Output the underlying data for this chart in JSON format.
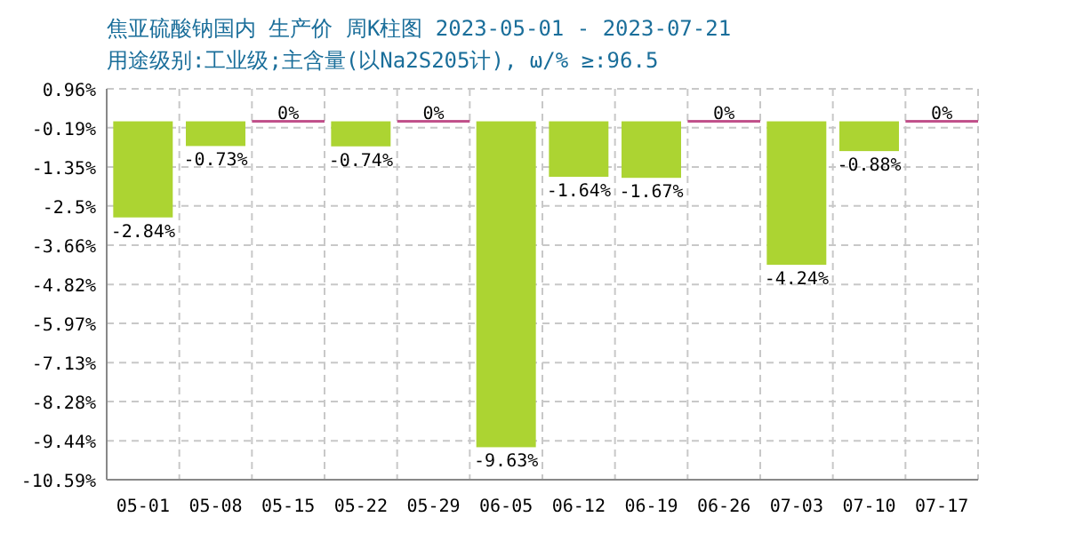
{
  "chart_data": {
    "type": "bar",
    "title": "焦亚硫酸钠国内 生产价 周K柱图 2023-05-01 - 2023-07-21",
    "subtitle": "用途级别:工业级;主含量(以Na2S205计), ω/%  ≥:96.5",
    "categories": [
      "05-01",
      "05-08",
      "05-15",
      "05-22",
      "05-29",
      "06-05",
      "06-12",
      "06-19",
      "06-26",
      "07-03",
      "07-10",
      "07-17"
    ],
    "values": [
      -2.84,
      -0.73,
      0,
      -0.74,
      0,
      -9.63,
      -1.64,
      -1.67,
      0,
      -4.24,
      -0.88,
      0
    ],
    "value_labels": [
      "-2.84%",
      "-0.73%",
      "0%",
      "-0.74%",
      "0%",
      "-9.63%",
      "-1.64%",
      "-1.67%",
      "0%",
      "-4.24%",
      "-0.88%",
      "0%"
    ],
    "colors": [
      "#acd432",
      "#acd432",
      "#c0508a",
      "#acd432",
      "#c0508a",
      "#acd432",
      "#acd432",
      "#acd432",
      "#c0508a",
      "#acd432",
      "#acd432",
      "#c0508a"
    ],
    "ylim": [
      -10.59,
      0.96
    ],
    "yticks": [
      {
        "value": 0.96,
        "label": "0.96%"
      },
      {
        "value": -0.19,
        "label": "-0.19%"
      },
      {
        "value": -1.35,
        "label": "-1.35%"
      },
      {
        "value": -2.5,
        "label": "-2.5%"
      },
      {
        "value": -3.66,
        "label": "-3.66%"
      },
      {
        "value": -4.82,
        "label": "-4.82%"
      },
      {
        "value": -5.97,
        "label": "-5.97%"
      },
      {
        "value": -7.13,
        "label": "-7.13%"
      },
      {
        "value": -8.28,
        "label": "-8.28%"
      },
      {
        "value": -9.44,
        "label": "-9.44%"
      },
      {
        "value": -10.59,
        "label": "-10.59%"
      }
    ],
    "grid": true
  }
}
